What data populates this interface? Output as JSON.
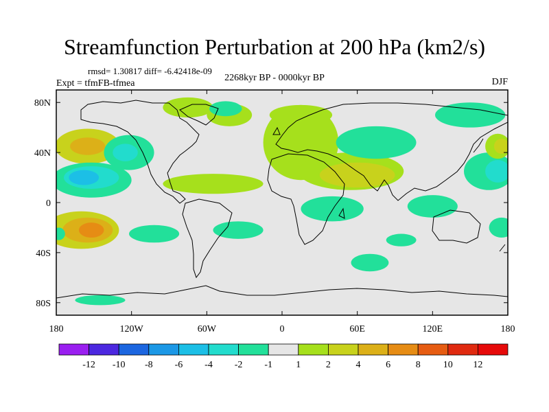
{
  "chart_data": {
    "type": "heatmap",
    "title": "Streamfunction Perturbation at 200 hPa (km2/s)",
    "stats_text": "rmsd= 1.30817 diff= -6.42418e-09",
    "left_label": "Expt = tfmFB-tfmea",
    "center_label": "2268kyr BP - 0000kyr BP",
    "right_label": "DJF",
    "x_ticks": [
      "180",
      "120W",
      "60W",
      "0",
      "60E",
      "120E",
      "180"
    ],
    "x_tick_values": [
      -180,
      -120,
      -60,
      0,
      60,
      120,
      180
    ],
    "y_ticks": [
      "80N",
      "40N",
      "0",
      "40S",
      "80S"
    ],
    "y_tick_values": [
      80,
      40,
      0,
      -40,
      -80
    ],
    "xlim": [
      -180,
      180
    ],
    "ylim": [
      -90,
      90
    ],
    "colorbar_labels": [
      "-12",
      "-10",
      "-8",
      "-6",
      "-4",
      "-2",
      "-1",
      "1",
      "2",
      "4",
      "6",
      "8",
      "10",
      "12"
    ],
    "colorbar_colors": [
      "#9a1ff0",
      "#4c28e0",
      "#1c66e0",
      "#1c98e6",
      "#1cbfe6",
      "#22dccd",
      "#22e09a",
      "#e6e6e6",
      "#a6e01c",
      "#c8d21c",
      "#dcb018",
      "#e68c14",
      "#e65c12",
      "#e02a10",
      "#e60a0a"
    ],
    "regions": [
      {
        "lon": -155,
        "lat": 45,
        "rx": 26,
        "ry": 14,
        "level": 2
      },
      {
        "lon": -155,
        "lat": 45,
        "rx": 14,
        "ry": 7,
        "level": 4
      },
      {
        "lon": -122,
        "lat": 40,
        "rx": 20,
        "ry": 14,
        "level": -1
      },
      {
        "lon": -125,
        "lat": 40,
        "rx": 10,
        "ry": 7,
        "level": -2
      },
      {
        "lon": -152,
        "lat": 18,
        "rx": 32,
        "ry": 14,
        "level": -1
      },
      {
        "lon": -152,
        "lat": 20,
        "rx": 22,
        "ry": 9,
        "level": -2
      },
      {
        "lon": -158,
        "lat": 20,
        "rx": 12,
        "ry": 6,
        "level": -4
      },
      {
        "lon": -160,
        "lat": -22,
        "rx": 30,
        "ry": 15,
        "level": 2
      },
      {
        "lon": -155,
        "lat": -22,
        "rx": 20,
        "ry": 10,
        "level": 4
      },
      {
        "lon": -152,
        "lat": -22,
        "rx": 10,
        "ry": 6,
        "level": 6
      },
      {
        "lon": -178,
        "lat": -25,
        "rx": 5,
        "ry": 5,
        "level": -1
      },
      {
        "lon": -102,
        "lat": -25,
        "rx": 20,
        "ry": 7,
        "level": -1
      },
      {
        "lon": -35,
        "lat": -22,
        "rx": 20,
        "ry": 7,
        "level": -1
      },
      {
        "lon": -75,
        "lat": 76,
        "rx": 20,
        "ry": 8,
        "level": 1
      },
      {
        "lon": -42,
        "lat": 70,
        "rx": 18,
        "ry": 9,
        "level": 1
      },
      {
        "lon": -45,
        "lat": 75,
        "rx": 13,
        "ry": 6,
        "level": -1
      },
      {
        "lon": -55,
        "lat": 15,
        "rx": 40,
        "ry": 8,
        "level": 1
      },
      {
        "lon": 15,
        "lat": 48,
        "rx": 30,
        "ry": 30,
        "level": 1
      },
      {
        "lon": 55,
        "lat": 25,
        "rx": 42,
        "ry": 15,
        "level": 1
      },
      {
        "lon": 60,
        "lat": 22,
        "rx": 30,
        "ry": 10,
        "level": 2
      },
      {
        "lon": 15,
        "lat": 70,
        "rx": 25,
        "ry": 8,
        "level": 1
      },
      {
        "lon": 75,
        "lat": 48,
        "rx": 32,
        "ry": 13,
        "level": -1
      },
      {
        "lon": 150,
        "lat": 70,
        "rx": 28,
        "ry": 10,
        "level": -1
      },
      {
        "lon": 165,
        "lat": 25,
        "rx": 20,
        "ry": 15,
        "level": -1
      },
      {
        "lon": 172,
        "lat": 25,
        "rx": 10,
        "ry": 9,
        "level": -2
      },
      {
        "lon": 172,
        "lat": 45,
        "rx": 10,
        "ry": 10,
        "level": 1
      },
      {
        "lon": 175,
        "lat": 45,
        "rx": 6,
        "ry": 6,
        "level": 2
      },
      {
        "lon": 175,
        "lat": -20,
        "rx": 10,
        "ry": 8,
        "level": -1
      },
      {
        "lon": 40,
        "lat": -5,
        "rx": 25,
        "ry": 10,
        "level": -1
      },
      {
        "lon": 120,
        "lat": -3,
        "rx": 20,
        "ry": 9,
        "level": -1
      },
      {
        "lon": 95,
        "lat": -30,
        "rx": 12,
        "ry": 5,
        "level": -1
      },
      {
        "lon": 70,
        "lat": -48,
        "rx": 15,
        "ry": 7,
        "level": -1
      },
      {
        "lon": -145,
        "lat": -78,
        "rx": 20,
        "ry": 4,
        "level": -1
      }
    ]
  }
}
